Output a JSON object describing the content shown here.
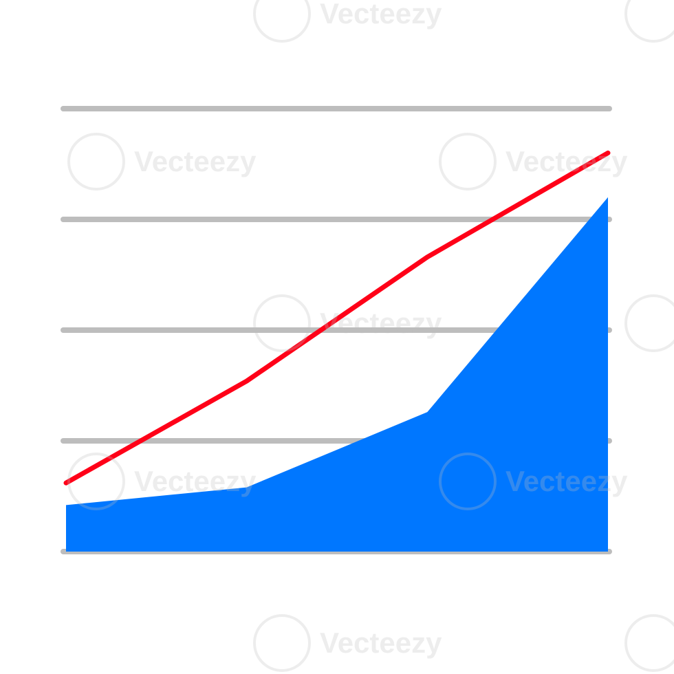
{
  "chart_data": {
    "type": "area",
    "x": [
      0,
      1,
      2,
      3
    ],
    "series": [
      {
        "kind": "area",
        "color": "#0077ff",
        "values": [
          1.05,
          1.45,
          3.15,
          8.0
        ]
      },
      {
        "kind": "line",
        "color": "#ff0018",
        "values": [
          1.55,
          3.85,
          6.65,
          9.0
        ]
      }
    ],
    "ylim": [
      0,
      10
    ],
    "grid": true,
    "gridline_color": "#bdbdbd"
  },
  "watermark": {
    "text": "Vecteezy",
    "icon": "vecteezy-v-logo"
  }
}
